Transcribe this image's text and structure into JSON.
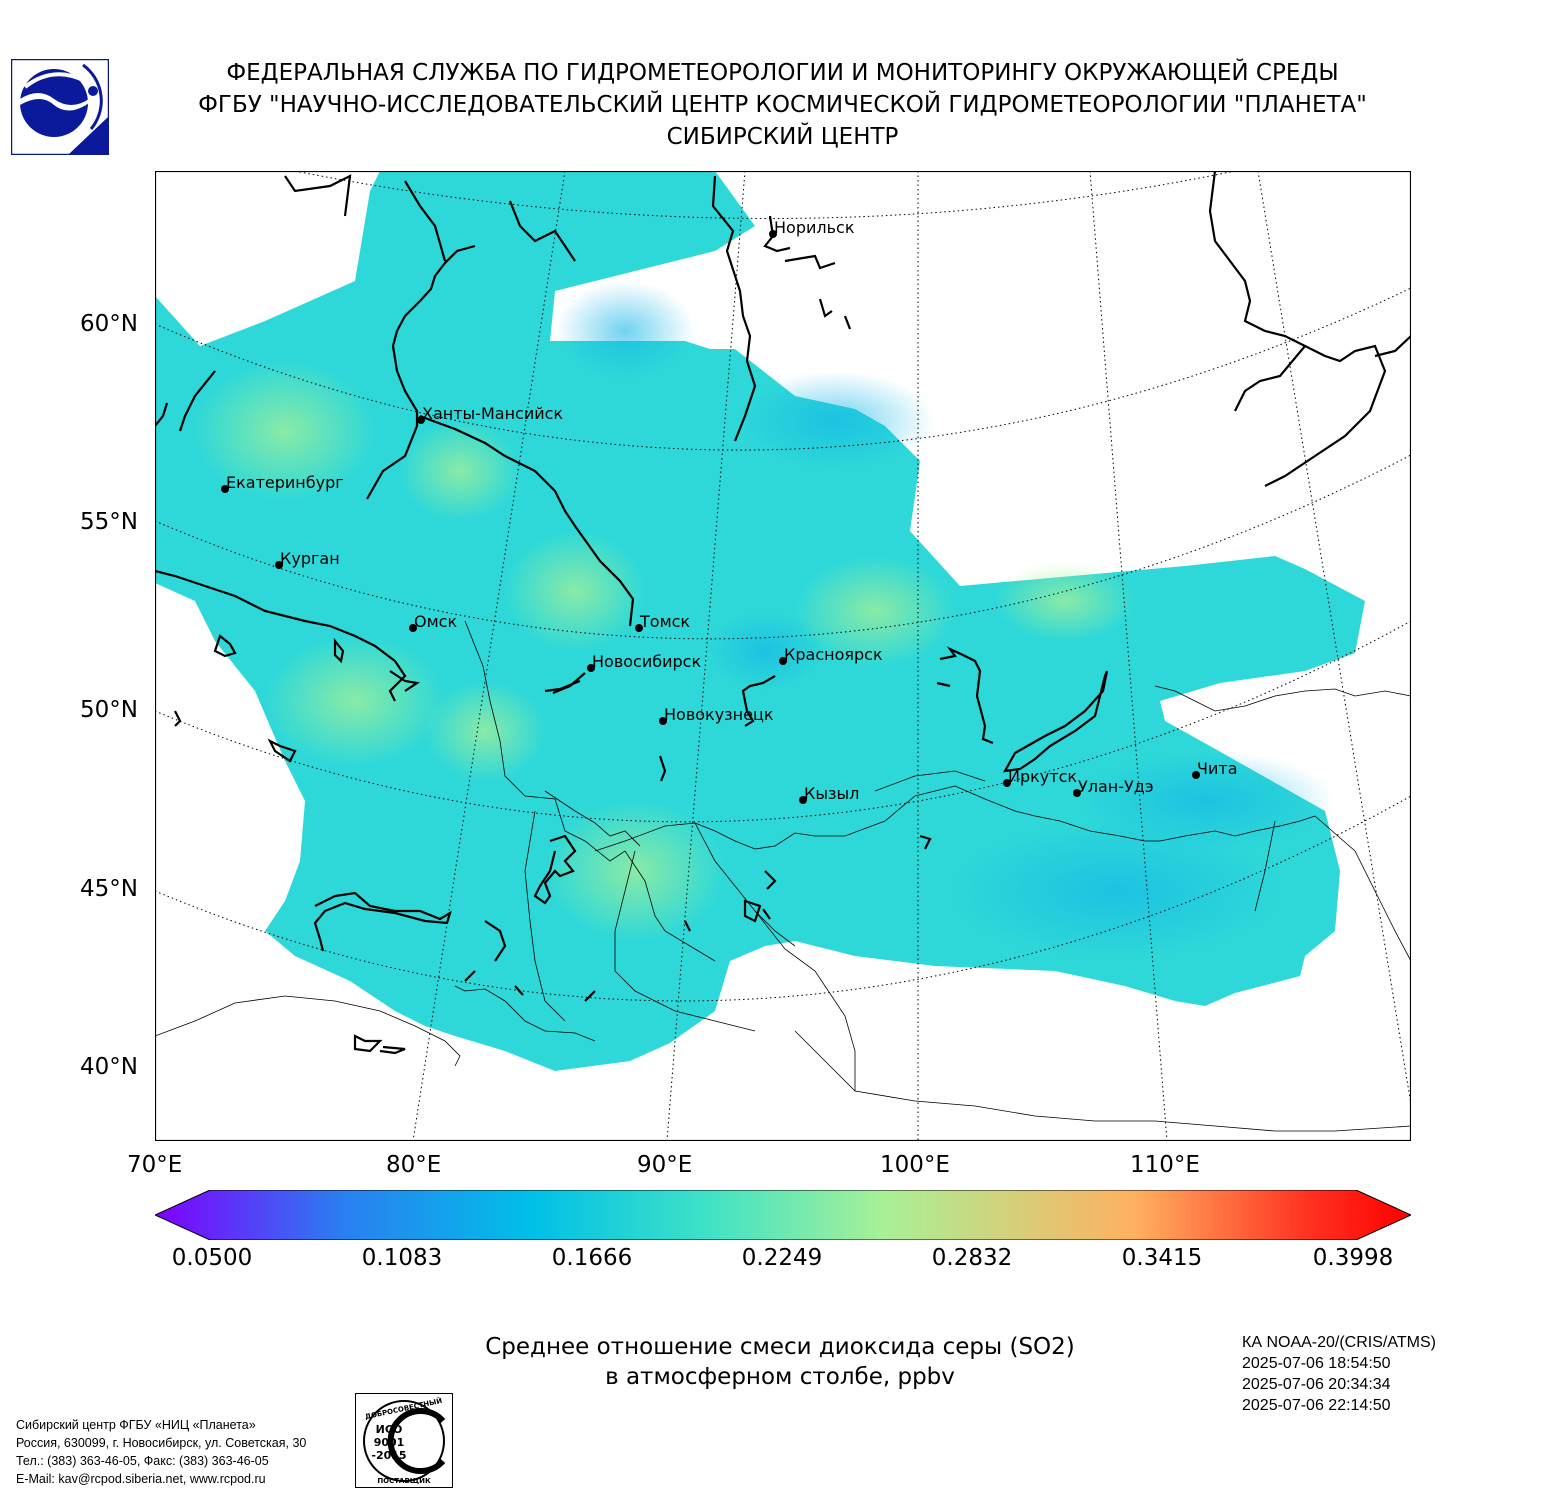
{
  "header": {
    "line1": "ФЕДЕРАЛЬНАЯ СЛУЖБА ПО ГИДРОМЕТЕОРОЛОГИИ И МОНИТОРИНГУ ОКРУЖАЮЩЕЙ СРЕДЫ",
    "line2": "ФГБУ \"НАУЧНО-ИССЛЕДОВАТЕЛЬСКИЙ ЦЕНТР КОСМИЧЕСКОЙ ГИДРОМЕТЕОРОЛОГИИ \"ПЛАНЕТА\"",
    "line3": "СИБИРСКИЙ ЦЕНТР"
  },
  "map": {
    "lat_labels": [
      "60°N",
      "55°N",
      "50°N",
      "45°N",
      "40°N"
    ],
    "lon_labels": [
      "70°E",
      "80°E",
      "90°E",
      "100°E",
      "110°E"
    ],
    "cities": [
      {
        "name": "Норильск"
      },
      {
        "name": "Ханты-Мансийск"
      },
      {
        "name": "Екатеринбург"
      },
      {
        "name": "Курган"
      },
      {
        "name": "Омск"
      },
      {
        "name": "Томск"
      },
      {
        "name": "Новосибирск"
      },
      {
        "name": "Красноярск"
      },
      {
        "name": "Новокузнецк"
      },
      {
        "name": "Иркутск"
      },
      {
        "name": "Улан-Удэ"
      },
      {
        "name": "Чита"
      },
      {
        "name": "Кызыл"
      }
    ]
  },
  "colorbar": {
    "ticks": [
      "0.0500",
      "0.1083",
      "0.1666",
      "0.2249",
      "0.2832",
      "0.3415",
      "0.3998"
    ],
    "colors": [
      "#7f00ff",
      "#2a7ff0",
      "#00c0e8",
      "#3fe2c6",
      "#a8f096",
      "#ffb060",
      "#ff3020",
      "#ff0000"
    ]
  },
  "product_title": {
    "line1": "Среднее отношение смеси диоксида серы (SO2)",
    "line2": "в атмосферном столбе, ppbv"
  },
  "satellite": {
    "name": "КА NOAA-20/(CRIS/ATMS)",
    "times": [
      "2025-07-06 18:54:50",
      "2025-07-06 20:34:34",
      "2025-07-06 22:14:50"
    ]
  },
  "contact": {
    "line1": "Сибирский центр ФГБУ «НИЦ «Планета»",
    "line2": "Россия, 630099, г. Новосибирск, ул. Советская, 30",
    "line3": "Тел.: (383) 363-46-05, Факс: (383) 363-46-05",
    "line4": "E-Mail: kav@rcpod.siberia.net, www.rcpod.ru"
  },
  "iso_badge": {
    "top_text": "ДОБРОСОВЕСТНЫЙ",
    "line1": "ИСО",
    "line2": "9001",
    "line3": "-2015",
    "bottom_text": "ПОСТАВЩИК"
  }
}
